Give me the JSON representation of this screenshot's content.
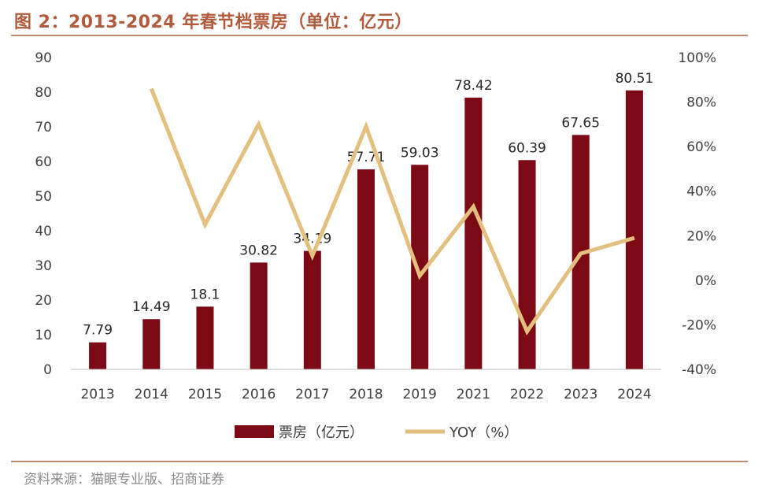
{
  "figure": {
    "title": "图 2：2013-2024 年春节档票房（单位：亿元）",
    "source": "资料来源：猫眼专业版、招商证券"
  },
  "chart_data": {
    "type": "bar",
    "categories": [
      "2013",
      "2014",
      "2015",
      "2016",
      "2017",
      "2018",
      "2019",
      "2021",
      "2022",
      "2023",
      "2024"
    ],
    "series": [
      {
        "name": "票房（亿元）",
        "type": "bar",
        "axis": "left",
        "color": "#7b0a14",
        "values": [
          7.79,
          14.49,
          18.1,
          30.82,
          34.19,
          57.71,
          59.03,
          78.42,
          60.39,
          67.65,
          80.51
        ],
        "labels": [
          "7.79",
          "14.49",
          "18.1",
          "30.82",
          "34.19",
          "57.71",
          "59.03",
          "78.42",
          "60.39",
          "67.65",
          "80.51"
        ]
      },
      {
        "name": "YOY（%）",
        "type": "line",
        "axis": "right",
        "color": "#e3c07f",
        "values": [
          null,
          86,
          25,
          70,
          11,
          69,
          2,
          33,
          -23,
          12,
          19
        ]
      }
    ],
    "y_left": {
      "min": 0,
      "max": 90,
      "step": 10,
      "ticks": [
        "0",
        "10",
        "20",
        "30",
        "40",
        "50",
        "60",
        "70",
        "80",
        "90"
      ]
    },
    "y_right": {
      "min": -40,
      "max": 100,
      "step": 20,
      "ticks": [
        "-40%",
        "-20%",
        "0%",
        "20%",
        "40%",
        "60%",
        "80%",
        "100%"
      ]
    },
    "grid": false,
    "legend": "bottom"
  }
}
